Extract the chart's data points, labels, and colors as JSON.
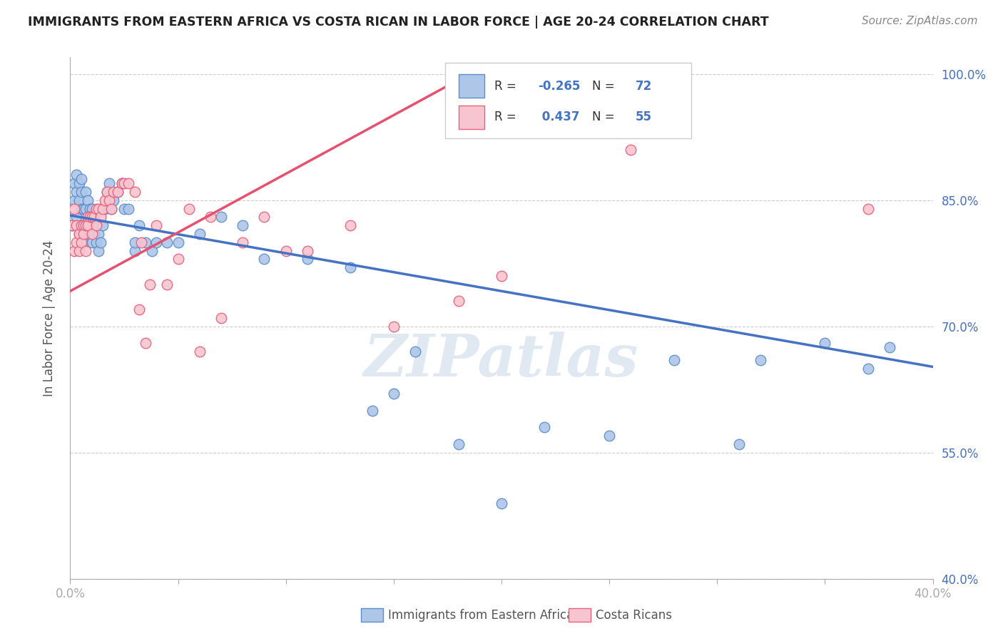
{
  "title": "IMMIGRANTS FROM EASTERN AFRICA VS COSTA RICAN IN LABOR FORCE | AGE 20-24 CORRELATION CHART",
  "source": "Source: ZipAtlas.com",
  "ylabel": "In Labor Force | Age 20-24",
  "xlim": [
    0.0,
    0.4
  ],
  "ylim": [
    0.4,
    1.02
  ],
  "xticks": [
    0.0,
    0.05,
    0.1,
    0.15,
    0.2,
    0.25,
    0.3,
    0.35,
    0.4
  ],
  "xticklabels": [
    "0.0%",
    "",
    "",
    "",
    "",
    "",
    "",
    "",
    "40.0%"
  ],
  "yticks_right": [
    0.4,
    0.55,
    0.7,
    0.85,
    1.0
  ],
  "yticklabels_right": [
    "40.0%",
    "55.0%",
    "70.0%",
    "85.0%",
    "100.0%"
  ],
  "group1_color": "#aec6e8",
  "group1_edge_color": "#5b8fcc",
  "group2_color": "#f7c5d0",
  "group2_edge_color": "#e8607a",
  "line1_color": "#4472c4",
  "line2_color": "#e85070",
  "R1": -0.265,
  "N1": 72,
  "R2": 0.437,
  "N2": 55,
  "background_color": "#ffffff",
  "grid_color": "#cccccc",
  "watermark": "ZIPatlas",
  "watermark_color": "#c8d8e8",
  "legend_label1": "Immigrants from Eastern Africa",
  "legend_label2": "Costa Ricans",
  "line1_x0": 0.0,
  "line1_y0": 0.832,
  "line1_x1": 0.4,
  "line1_y1": 0.652,
  "line2_x0": 0.0,
  "line2_y0": 0.742,
  "line2_x1": 0.185,
  "line2_y1": 1.0,
  "scatter1_x": [
    0.001,
    0.002,
    0.002,
    0.003,
    0.003,
    0.003,
    0.004,
    0.004,
    0.004,
    0.005,
    0.005,
    0.005,
    0.005,
    0.006,
    0.006,
    0.006,
    0.007,
    0.007,
    0.007,
    0.008,
    0.008,
    0.008,
    0.009,
    0.009,
    0.01,
    0.01,
    0.01,
    0.01,
    0.011,
    0.011,
    0.012,
    0.012,
    0.013,
    0.013,
    0.014,
    0.015,
    0.016,
    0.017,
    0.018,
    0.019,
    0.02,
    0.022,
    0.024,
    0.025,
    0.027,
    0.03,
    0.03,
    0.032,
    0.035,
    0.038,
    0.04,
    0.045,
    0.05,
    0.06,
    0.07,
    0.08,
    0.09,
    0.11,
    0.13,
    0.14,
    0.15,
    0.16,
    0.18,
    0.2,
    0.22,
    0.25,
    0.28,
    0.31,
    0.32,
    0.35,
    0.37,
    0.38
  ],
  "scatter1_y": [
    0.82,
    0.85,
    0.87,
    0.83,
    0.86,
    0.88,
    0.81,
    0.85,
    0.87,
    0.82,
    0.84,
    0.86,
    0.875,
    0.8,
    0.84,
    0.82,
    0.84,
    0.86,
    0.82,
    0.81,
    0.83,
    0.85,
    0.82,
    0.84,
    0.8,
    0.82,
    0.84,
    0.82,
    0.81,
    0.83,
    0.8,
    0.82,
    0.79,
    0.81,
    0.8,
    0.82,
    0.84,
    0.86,
    0.87,
    0.84,
    0.85,
    0.86,
    0.87,
    0.84,
    0.84,
    0.79,
    0.8,
    0.82,
    0.8,
    0.79,
    0.8,
    0.8,
    0.8,
    0.81,
    0.83,
    0.82,
    0.78,
    0.78,
    0.77,
    0.6,
    0.62,
    0.67,
    0.56,
    0.49,
    0.58,
    0.57,
    0.66,
    0.56,
    0.66,
    0.68,
    0.65,
    0.675
  ],
  "scatter2_x": [
    0.001,
    0.002,
    0.002,
    0.003,
    0.003,
    0.004,
    0.004,
    0.005,
    0.005,
    0.006,
    0.006,
    0.007,
    0.007,
    0.008,
    0.008,
    0.009,
    0.01,
    0.01,
    0.011,
    0.012,
    0.012,
    0.013,
    0.014,
    0.015,
    0.016,
    0.017,
    0.018,
    0.019,
    0.02,
    0.022,
    0.024,
    0.025,
    0.027,
    0.03,
    0.032,
    0.033,
    0.035,
    0.037,
    0.04,
    0.045,
    0.05,
    0.055,
    0.06,
    0.065,
    0.07,
    0.08,
    0.09,
    0.1,
    0.11,
    0.13,
    0.15,
    0.18,
    0.2,
    0.26,
    0.37
  ],
  "scatter2_y": [
    0.82,
    0.84,
    0.79,
    0.8,
    0.82,
    0.79,
    0.81,
    0.82,
    0.8,
    0.82,
    0.81,
    0.82,
    0.79,
    0.83,
    0.82,
    0.83,
    0.83,
    0.81,
    0.83,
    0.84,
    0.82,
    0.84,
    0.83,
    0.84,
    0.85,
    0.86,
    0.85,
    0.84,
    0.86,
    0.86,
    0.87,
    0.87,
    0.87,
    0.86,
    0.72,
    0.8,
    0.68,
    0.75,
    0.82,
    0.75,
    0.78,
    0.84,
    0.67,
    0.83,
    0.71,
    0.8,
    0.83,
    0.79,
    0.79,
    0.82,
    0.7,
    0.73,
    0.76,
    0.91,
    0.84
  ]
}
